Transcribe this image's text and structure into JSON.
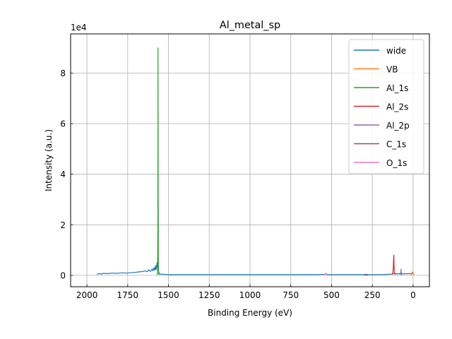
{
  "chart_data": {
    "type": "line",
    "title": "Al_metal_sp",
    "xlabel": "Binding Energy (eV)",
    "ylabel": "Intensity (a.u.)",
    "y_scale_label": "1e4",
    "x_reversed": true,
    "xlim": [
      2100,
      -100
    ],
    "ylim": [
      -0.45,
      9.55
    ],
    "y_unit_multiplier": 10000,
    "xticks": [
      2000,
      1750,
      1500,
      1250,
      1000,
      750,
      500,
      250,
      0
    ],
    "xtick_labels": [
      "2000",
      "1750",
      "1500",
      "1250",
      "1000",
      "750",
      "500",
      "250",
      "0"
    ],
    "yticks": [
      0,
      2,
      4,
      6,
      8
    ],
    "ytick_labels": [
      "0",
      "2",
      "4",
      "6",
      "8"
    ],
    "grid": true,
    "legend_position": "top-right",
    "series": [
      {
        "name": "wide",
        "color": "#1f77b4",
        "x": [
          1940,
          1930,
          1920,
          1910,
          1900,
          1880,
          1860,
          1840,
          1820,
          1800,
          1780,
          1760,
          1740,
          1720,
          1700,
          1680,
          1660,
          1640,
          1630,
          1620,
          1610,
          1600,
          1595,
          1590,
          1585,
          1580,
          1577,
          1574,
          1570,
          1567,
          1565,
          1563,
          1560,
          1550,
          1500,
          1400,
          1200,
          1000,
          800,
          600,
          540,
          535,
          530,
          520,
          400,
          300,
          290,
          285,
          280,
          200,
          130,
          122,
          118,
          110,
          100,
          80,
          76,
          73,
          70,
          50,
          20,
          5,
          0,
          -5
        ],
        "y": [
          0.05,
          0.06,
          0.07,
          0.05,
          0.08,
          0.07,
          0.08,
          0.09,
          0.08,
          0.09,
          0.1,
          0.09,
          0.1,
          0.11,
          0.12,
          0.14,
          0.15,
          0.18,
          0.14,
          0.22,
          0.16,
          0.25,
          0.18,
          0.3,
          0.2,
          0.38,
          0.22,
          0.3,
          0.5,
          0.25,
          0.8,
          0.35,
          0.12,
          0.05,
          0.03,
          0.03,
          0.03,
          0.03,
          0.03,
          0.03,
          0.04,
          0.06,
          0.04,
          0.03,
          0.03,
          0.03,
          0.04,
          0.04,
          0.03,
          0.03,
          0.05,
          0.09,
          0.07,
          0.06,
          0.06,
          0.07,
          0.12,
          0.09,
          0.07,
          0.06,
          0.07,
          0.08,
          0.07,
          0.05
        ]
      },
      {
        "name": "VB",
        "color": "#ff7f0e",
        "x": [
          15,
          10,
          5,
          3,
          0,
          -2,
          -5
        ],
        "y": [
          0.0,
          0.05,
          0.1,
          0.14,
          0.12,
          0.06,
          0.02
        ]
      },
      {
        "name": "Al_1s",
        "color": "#2ca02c",
        "x": [
          1572,
          1568,
          1566,
          1565,
          1564,
          1563,
          1562,
          1561,
          1560,
          1556
        ],
        "y": [
          0.02,
          0.05,
          0.4,
          2.0,
          9.0,
          3.0,
          0.6,
          0.15,
          0.05,
          0.02
        ]
      },
      {
        "name": "Al_2s",
        "color": "#d62728",
        "x": [
          130,
          126,
          122,
          120,
          118,
          117,
          116,
          112,
          108
        ],
        "y": [
          0.03,
          0.05,
          0.2,
          0.6,
          0.8,
          0.5,
          0.15,
          0.06,
          0.03
        ]
      },
      {
        "name": "Al_2p",
        "color": "#9467bd",
        "x": [
          82,
          78,
          75,
          74,
          73,
          72,
          70,
          66
        ],
        "y": [
          0.02,
          0.04,
          0.12,
          0.25,
          0.18,
          0.06,
          0.03,
          0.02
        ]
      },
      {
        "name": "C_1s",
        "color": "#8c564b",
        "x": [
          298,
          292,
          290,
          287,
          285,
          283,
          280,
          276
        ],
        "y": [
          0.0,
          0.01,
          0.02,
          0.03,
          0.035,
          0.02,
          0.01,
          0.0
        ]
      },
      {
        "name": "O_1s",
        "color": "#e377c2",
        "x": [
          545,
          540,
          536,
          533,
          531,
          528,
          524
        ],
        "y": [
          0.02,
          0.04,
          0.07,
          0.09,
          0.06,
          0.03,
          0.02
        ]
      }
    ]
  }
}
